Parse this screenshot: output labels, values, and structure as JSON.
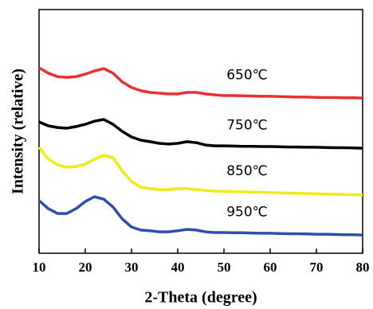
{
  "chart_data": {
    "type": "line",
    "x_label": "2-Theta (degree)",
    "y_label": "Intensity (relative)",
    "xlim": [
      10,
      80
    ],
    "xticks": [
      10,
      20,
      30,
      40,
      50,
      60,
      70,
      80
    ],
    "ylim": [
      0,
      100
    ],
    "x": [
      10,
      12,
      14,
      16,
      18,
      20,
      22,
      24,
      26,
      28,
      30,
      32,
      34,
      36,
      38,
      40,
      42,
      44,
      46,
      48,
      50,
      52,
      54,
      56,
      58,
      60,
      62,
      64,
      66,
      68,
      70,
      72,
      74,
      76,
      78,
      80
    ],
    "series": [
      {
        "name": "650℃",
        "color": "#e8312f",
        "values": [
          76.1,
          73.9,
          72.5,
          72.2,
          72.5,
          73.5,
          74.8,
          75.8,
          73.9,
          70.3,
          68.0,
          66.7,
          66.0,
          65.7,
          65.4,
          65.4,
          66.0,
          66.0,
          65.4,
          65.0,
          64.7,
          64.7,
          64.6,
          64.5,
          64.4,
          64.4,
          64.3,
          64.2,
          64.1,
          64.1,
          64.0,
          63.9,
          63.9,
          63.8,
          63.8,
          63.7
        ]
      },
      {
        "name": "750℃",
        "color": "#000000",
        "values": [
          53.9,
          52.3,
          51.6,
          51.3,
          52.0,
          52.9,
          54.2,
          54.9,
          52.9,
          50.0,
          47.7,
          46.4,
          45.8,
          45.1,
          44.8,
          45.1,
          45.8,
          45.4,
          44.4,
          44.1,
          44.1,
          44.0,
          43.9,
          43.9,
          43.8,
          43.8,
          43.7,
          43.6,
          43.6,
          43.5,
          43.5,
          43.4,
          43.3,
          43.3,
          43.2,
          43.1
        ]
      },
      {
        "name": "850℃",
        "color": "#f0ea1a",
        "values": [
          43.5,
          38.6,
          36.3,
          35.3,
          35.6,
          36.6,
          38.6,
          40.2,
          39.2,
          33.7,
          29.4,
          27.1,
          26.5,
          26.1,
          26.1,
          26.5,
          26.5,
          26.1,
          25.8,
          25.5,
          25.4,
          25.3,
          25.2,
          25.1,
          25.0,
          24.9,
          24.8,
          24.7,
          24.6,
          24.5,
          24.4,
          24.3,
          24.2,
          24.1,
          24.0,
          23.9
        ]
      },
      {
        "name": "950℃",
        "color": "#2f4fa8",
        "values": [
          21.6,
          18.3,
          16.3,
          16.3,
          18.3,
          21.2,
          23.2,
          22.2,
          19.0,
          14.1,
          10.8,
          9.5,
          9.2,
          8.8,
          8.8,
          9.2,
          9.8,
          9.5,
          8.8,
          8.5,
          8.5,
          8.4,
          8.4,
          8.3,
          8.2,
          8.2,
          8.1,
          8.0,
          8.0,
          7.9,
          7.8,
          7.8,
          7.7,
          7.6,
          7.6,
          7.5
        ]
      }
    ]
  }
}
